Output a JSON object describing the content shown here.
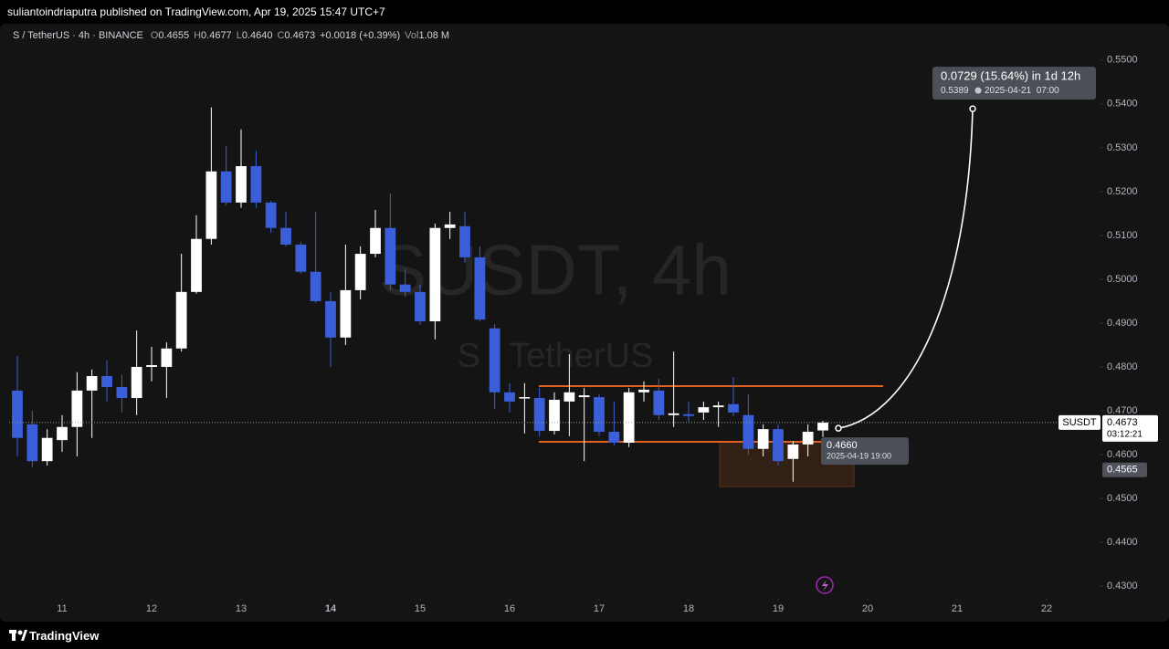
{
  "header": {
    "title": "suliantoindriaputra published on TradingView.com, Apr 19, 2025 15:47 UTC+7"
  },
  "footer": {
    "brand": "TradingView"
  },
  "chart_data": {
    "type": "candlestick",
    "symbol": "S / TetherUS · 4h · BINANCE",
    "legend": [
      {
        "key": "O",
        "value": "0.4655"
      },
      {
        "key": "H",
        "value": "0.4677"
      },
      {
        "key": "L",
        "value": "0.4640"
      },
      {
        "key": "C",
        "value": "0.4673"
      },
      {
        "key": "",
        "value": "+0.0018 (+0.39%)"
      },
      {
        "key": "Vol",
        "value": "1.08 M"
      }
    ],
    "watermark": {
      "title": "SUSDT, 4h",
      "subtitle": "S / TetherUS"
    },
    "up_color": "#ffffff",
    "down_color": "#3a5fd8",
    "x": [
      10.5,
      10.667,
      10.833,
      11,
      11.167,
      11.333,
      11.5,
      11.667,
      11.833,
      12,
      12.167,
      12.333,
      12.5,
      12.667,
      12.833,
      13,
      13.167,
      13.333,
      13.5,
      13.667,
      13.833,
      14,
      14.167,
      14.333,
      14.5,
      14.667,
      14.833,
      15,
      15.167,
      15.333,
      15.5,
      15.667,
      15.833,
      16,
      16.167,
      16.333,
      16.5,
      16.667,
      16.833,
      17,
      17.167,
      17.333,
      17.5,
      17.667,
      17.833,
      18,
      18.167,
      18.333,
      18.5,
      18.667,
      18.833,
      19,
      19.167,
      19.333,
      19.5
    ],
    "open": [
      0.4746,
      0.4669,
      0.4585,
      0.4633,
      0.4663,
      0.4746,
      0.4779,
      0.4754,
      0.4729,
      0.48,
      0.48,
      0.4842,
      0.4971,
      0.5092,
      0.5246,
      0.5175,
      0.5258,
      0.5175,
      0.5117,
      0.5079,
      0.5017,
      0.495,
      0.4867,
      0.4975,
      0.5058,
      0.5117,
      0.4988,
      0.4971,
      0.4904,
      0.5117,
      0.5121,
      0.505,
      0.4888,
      0.4742,
      0.4729,
      0.4729,
      0.4654,
      0.4721,
      0.4731,
      0.4731,
      0.4652,
      0.4627,
      0.4742,
      0.4746,
      0.469,
      0.4692,
      0.4696,
      0.4708,
      0.4715,
      0.469,
      0.4613,
      0.4658,
      0.459,
      0.4623,
      0.4655
    ],
    "high": [
      0.4825,
      0.47,
      0.4658,
      0.469,
      0.4788,
      0.4794,
      0.4815,
      0.4783,
      0.4883,
      0.4846,
      0.4856,
      0.5058,
      0.5146,
      0.5392,
      0.5304,
      0.5342,
      0.5294,
      0.5179,
      0.5154,
      0.5085,
      0.5154,
      0.4971,
      0.5079,
      0.5075,
      0.5158,
      0.5196,
      0.5023,
      0.4988,
      0.5127,
      0.5154,
      0.5154,
      0.5075,
      0.4898,
      0.4763,
      0.4763,
      0.4752,
      0.4742,
      0.4829,
      0.4752,
      0.4738,
      0.4721,
      0.4752,
      0.4767,
      0.4773,
      0.4835,
      0.4721,
      0.4721,
      0.4721,
      0.4777,
      0.4738,
      0.4669,
      0.4669,
      0.4631,
      0.4669,
      0.4677
    ],
    "low": [
      0.4596,
      0.4571,
      0.4575,
      0.4606,
      0.4596,
      0.4638,
      0.4721,
      0.4696,
      0.469,
      0.4767,
      0.4729,
      0.4835,
      0.4967,
      0.5079,
      0.5169,
      0.5163,
      0.5163,
      0.5106,
      0.5075,
      0.5013,
      0.4946,
      0.48,
      0.485,
      0.4954,
      0.505,
      0.4975,
      0.496,
      0.4896,
      0.4863,
      0.5092,
      0.5038,
      0.4904,
      0.4704,
      0.4696,
      0.4648,
      0.4642,
      0.4646,
      0.4642,
      0.4585,
      0.4642,
      0.4621,
      0.4617,
      0.4721,
      0.4679,
      0.4663,
      0.4675,
      0.4679,
      0.4663,
      0.4688,
      0.46,
      0.4596,
      0.4575,
      0.4538,
      0.4596,
      0.464
    ],
    "close": [
      0.4638,
      0.4585,
      0.4638,
      0.4663,
      0.4746,
      0.4779,
      0.4754,
      0.4729,
      0.48,
      0.4804,
      0.4842,
      0.4971,
      0.5092,
      0.5246,
      0.5175,
      0.5258,
      0.5175,
      0.5117,
      0.5079,
      0.5017,
      0.495,
      0.4867,
      0.4975,
      0.5058,
      0.5117,
      0.4988,
      0.4971,
      0.4904,
      0.5117,
      0.5125,
      0.505,
      0.4908,
      0.4742,
      0.4721,
      0.4731,
      0.4654,
      0.4725,
      0.4742,
      0.4735,
      0.4652,
      0.4627,
      0.4742,
      0.4748,
      0.469,
      0.4694,
      0.4688,
      0.4708,
      0.4712,
      0.4696,
      0.4613,
      0.4658,
      0.4585,
      0.4623,
      0.4652,
      0.4673
    ],
    "xlim": [
      10.408,
      22.602
    ],
    "xticks": [
      11,
      12,
      13,
      14,
      15,
      16,
      17,
      18,
      19,
      20,
      21,
      22
    ],
    "ylim": [
      0.4273,
      0.5585
    ],
    "yticks": [
      {
        "value": 0.43,
        "label": "0.4300"
      },
      {
        "value": 0.44,
        "label": "0.4400"
      },
      {
        "value": 0.45,
        "label": "0.4500"
      },
      {
        "value": 0.46,
        "label": "0.4600"
      },
      {
        "value": 0.47,
        "label": "0.4700"
      },
      {
        "value": 0.48,
        "label": "0.4800"
      },
      {
        "value": 0.49,
        "label": "0.4900"
      },
      {
        "value": 0.5,
        "label": "0.5000"
      },
      {
        "value": 0.51,
        "label": "0.5100"
      },
      {
        "value": 0.52,
        "label": "0.5200"
      },
      {
        "value": 0.53,
        "label": "0.5300"
      },
      {
        "value": 0.54,
        "label": "0.5400"
      },
      {
        "value": 0.55,
        "label": "0.5500"
      }
    ],
    "last_price": {
      "symbol": "SUSDT",
      "value": 0.4673,
      "label": "0.4673",
      "countdown": "03:12:21"
    },
    "crosshair": {
      "value": 0.4565,
      "label": "0.4565"
    },
    "projection": {
      "from": 0.466,
      "from_label": "0.4660",
      "from_time": "2025-04-19 19:00",
      "to": 0.5389,
      "change": "0.0729 (15.64%) in 1d 12h",
      "time": "2025-04-21  07:00"
    }
  }
}
